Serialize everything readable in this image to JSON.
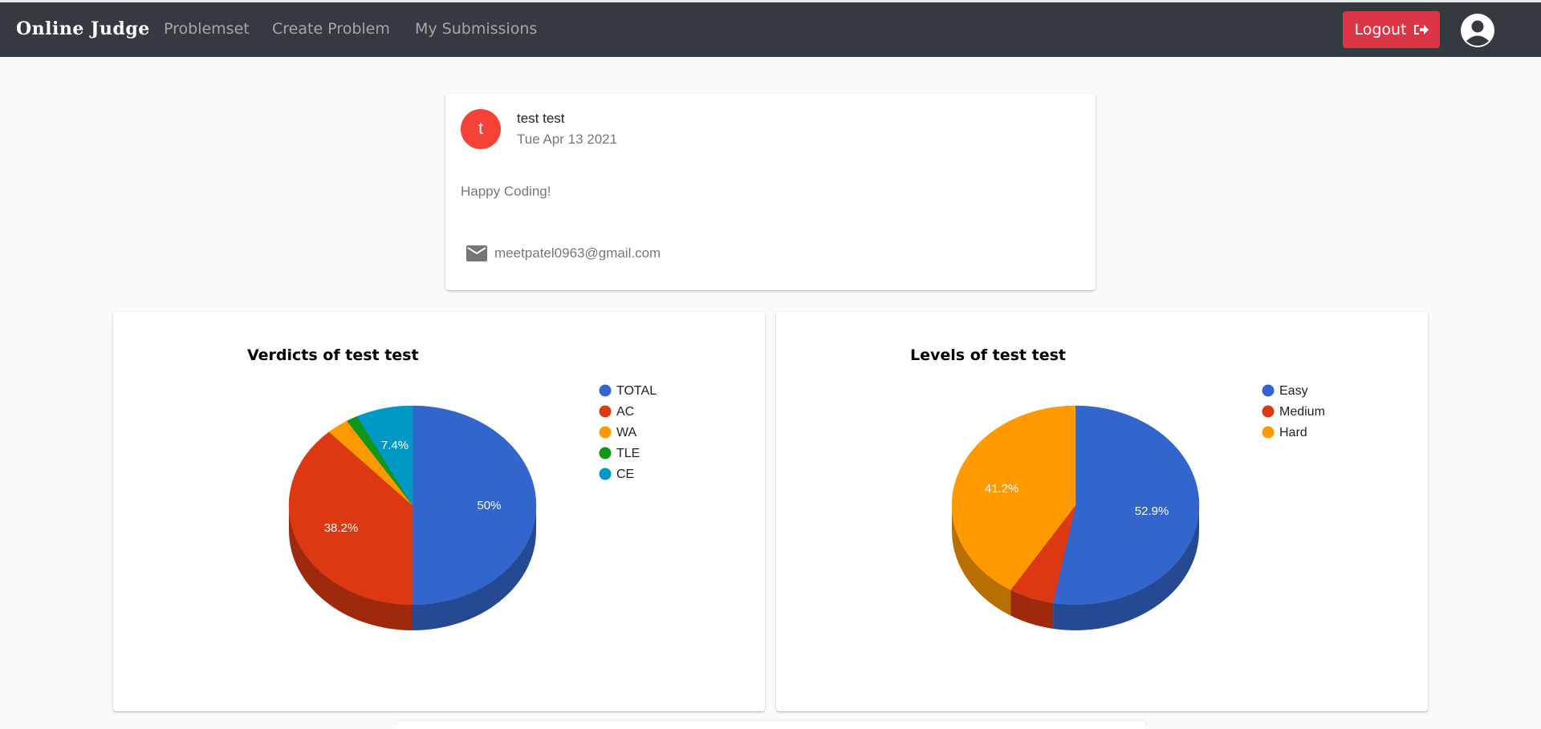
{
  "navbar": {
    "brand": "Online Judge",
    "links": [
      "Problemset",
      "Create Problem",
      "My Submissions"
    ],
    "logout_label": "Logout",
    "background": "#343a40"
  },
  "profile": {
    "avatar_letter": "t",
    "name": "test test",
    "date": "Tue Apr 13 2021",
    "bio": "Happy Coding!",
    "email": "meetpatel0963@gmail.com",
    "avatar_color": "#f44336"
  },
  "chart_data": [
    {
      "type": "pie",
      "style": "3d",
      "title": "Verdicts of test test",
      "legend_position": "right",
      "categories": [
        "TOTAL",
        "AC",
        "WA",
        "TLE",
        "CE"
      ],
      "values": [
        50,
        38.2,
        2.9,
        1.5,
        7.4
      ],
      "data_labels": [
        "50%",
        "38.2%",
        "",
        "",
        "7.4%"
      ],
      "colors": [
        "#3366cc",
        "#dc3912",
        "#ff9900",
        "#109618",
        "#0099c6"
      ]
    },
    {
      "type": "pie",
      "style": "3d",
      "title": "Levels of test test",
      "legend_position": "right",
      "categories": [
        "Easy",
        "Medium",
        "Hard"
      ],
      "values": [
        52.9,
        5.9,
        41.2
      ],
      "data_labels": [
        "52.9%",
        "",
        "41.2%"
      ],
      "colors": [
        "#3366cc",
        "#dc3912",
        "#ff9900"
      ]
    }
  ]
}
